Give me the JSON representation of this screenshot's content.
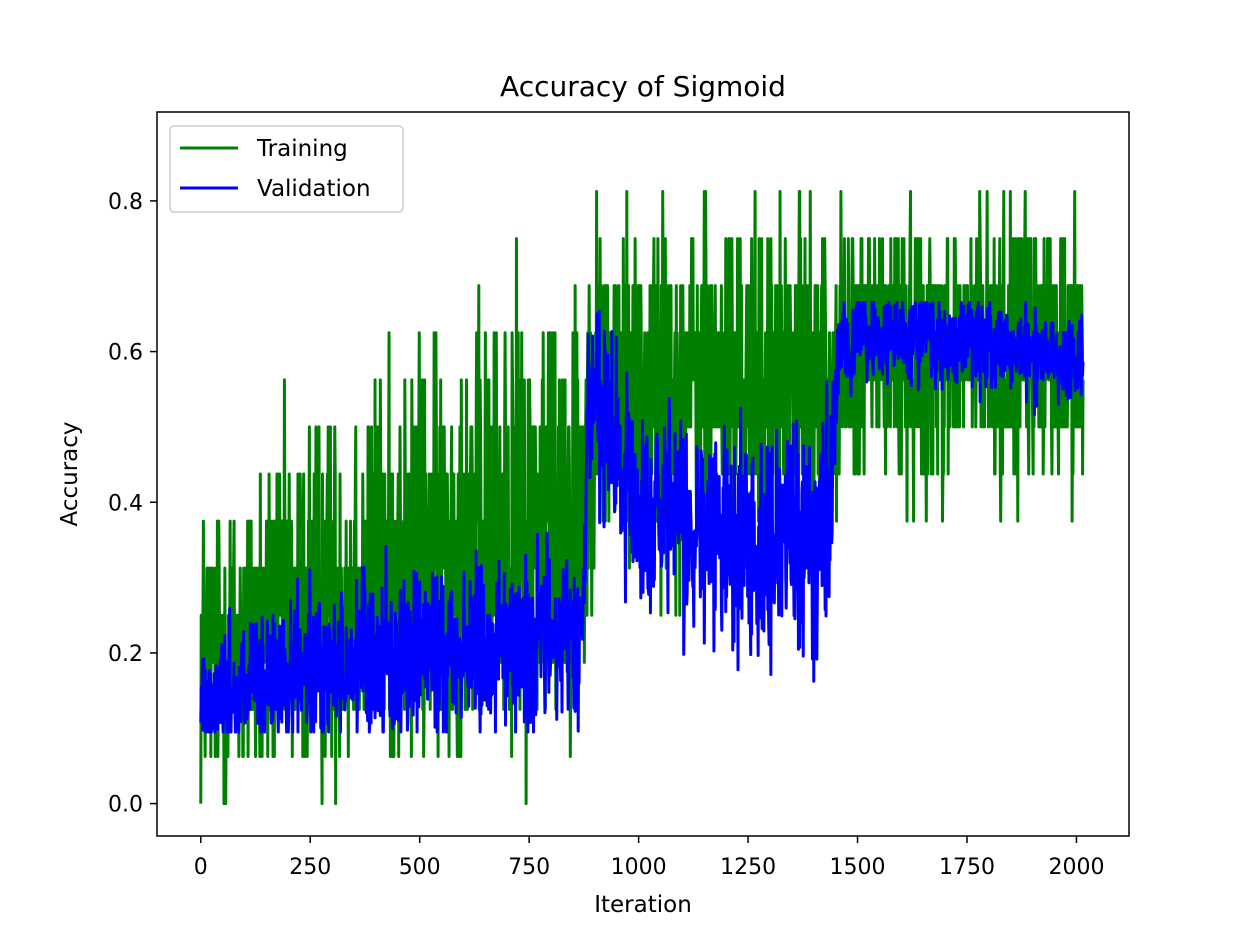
{
  "chart_data": {
    "type": "line",
    "title": "Accuracy of Sigmoid",
    "xlabel": "Iteration",
    "ylabel": "Accuracy",
    "xlim": [
      -100,
      2120
    ],
    "ylim": [
      -0.043,
      0.918
    ],
    "xticks": [
      0,
      250,
      500,
      750,
      1000,
      1250,
      1500,
      1750,
      2000
    ],
    "yticks": [
      0.0,
      0.2,
      0.4,
      0.6,
      0.8
    ],
    "xtick_labels": [
      "0",
      "250",
      "500",
      "750",
      "1000",
      "1250",
      "1500",
      "1750",
      "2000"
    ],
    "ytick_labels": [
      "0.0",
      "0.2",
      "0.4",
      "0.6",
      "0.8"
    ],
    "grid": false,
    "legend_position": "upper-left",
    "n_points": 2016,
    "series": [
      {
        "name": "Training",
        "color": "#008000",
        "x_start": 0,
        "x_step": 1,
        "trend": {
          "x": [
            0,
            100,
            300,
            500,
            700,
            875,
            890,
            1000,
            1200,
            1450,
            1460,
            1600,
            1800,
            2015
          ],
          "y": [
            0.19,
            0.22,
            0.28,
            0.33,
            0.37,
            0.41,
            0.56,
            0.55,
            0.55,
            0.56,
            0.6,
            0.6,
            0.6,
            0.6
          ]
        },
        "spread": {
          "x": [
            0,
            500,
            875,
            890,
            1450,
            1460,
            2015
          ],
          "y": [
            0.1,
            0.13,
            0.15,
            0.11,
            0.11,
            0.09,
            0.09
          ]
        },
        "step": 0.0625,
        "min_value": 0.0,
        "max_value": 0.875
      },
      {
        "name": "Validation",
        "color": "#0000ff",
        "x_start": 0,
        "x_step": 1,
        "trend": {
          "x": [
            0,
            100,
            300,
            500,
            700,
            875,
            885,
            920,
            1000,
            1200,
            1440,
            1455,
            1500,
            1800,
            2015
          ],
          "y": [
            0.14,
            0.15,
            0.18,
            0.2,
            0.21,
            0.23,
            0.55,
            0.5,
            0.38,
            0.35,
            0.36,
            0.6,
            0.62,
            0.61,
            0.59
          ]
        },
        "spread": {
          "x": [
            0,
            500,
            875,
            885,
            1440,
            1455,
            2015
          ],
          "y": [
            0.045,
            0.055,
            0.06,
            0.07,
            0.075,
            0.03,
            0.03
          ]
        },
        "min_value": 0.095,
        "max_value": 0.665
      }
    ]
  }
}
